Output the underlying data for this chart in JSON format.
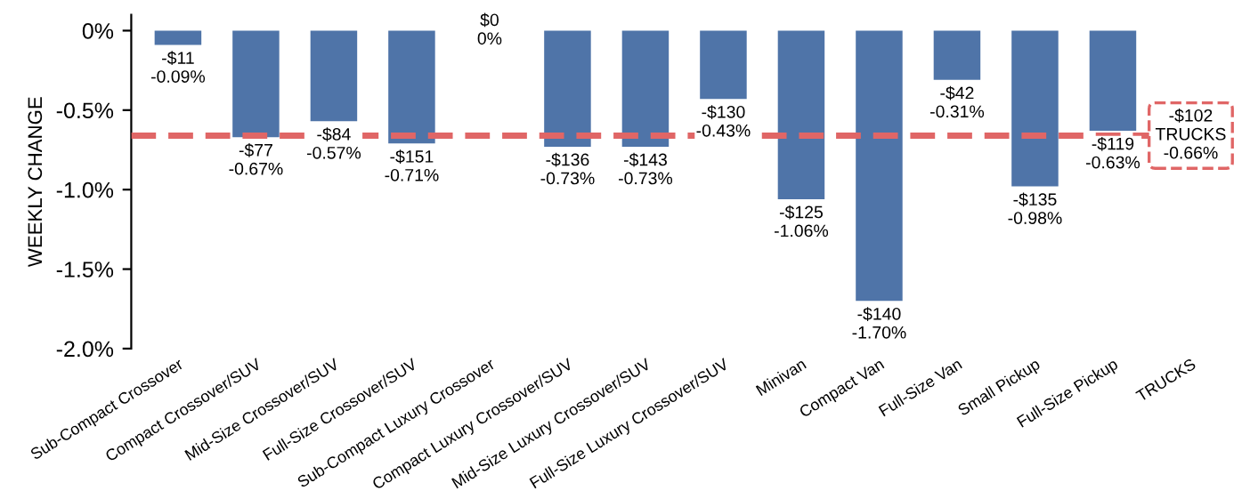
{
  "chart_data": {
    "type": "bar",
    "ylabel": "WEEKLY CHANGE",
    "categories": [
      "Sub-Compact Crossover",
      "Compact Crossover/SUV",
      "Mid-Size Crossover/SUV",
      "Full-Size Crossover/SUV",
      "Sub-Compact Luxury Crossover",
      "Compact Luxury Crossover/SUV",
      "Mid-Size Luxury Crossover/SUV",
      "Full-Size Luxury Crossover/SUV",
      "Minivan",
      "Compact Van",
      "Full-Size Van",
      "Small Pickup",
      "Full-Size Pickup",
      "TRUCKS"
    ],
    "values": [
      -0.09,
      -0.67,
      -0.57,
      -0.71,
      0,
      -0.73,
      -0.73,
      -0.43,
      -1.06,
      -1.7,
      -0.31,
      -0.98,
      -0.63,
      null
    ],
    "value_labels": [
      "-$11\n-0.09%",
      "-$77\n-0.67%",
      "-$84\n-0.57%",
      "-$151\n-0.71%",
      "$0\n0%",
      "-$136\n-0.73%",
      "-$143\n-0.73%",
      "-$130\n-0.43%",
      "-$125\n-1.06%",
      "-$140\n-1.70%",
      "-$42\n-0.31%",
      "-$135\n-0.98%",
      "-$119\n-0.63%",
      null
    ],
    "color": "#4f74a8",
    "ylim": [
      -2.0,
      0.1
    ],
    "yticks": [
      {
        "value": 0,
        "label": "0%"
      },
      {
        "value": -0.5,
        "label": "-0.5%"
      },
      {
        "value": -1.0,
        "label": "-1.0%"
      },
      {
        "value": -1.5,
        "label": "-1.5%"
      },
      {
        "value": -2.0,
        "label": "-2.0%"
      }
    ],
    "ref_lines": [
      {
        "axis": "y",
        "value": -0.66,
        "label": "-$102\nTRUCKS\n-0.66%",
        "color": "#e06666",
        "line_style": "dashed"
      }
    ],
    "grid": false,
    "legend": false
  }
}
